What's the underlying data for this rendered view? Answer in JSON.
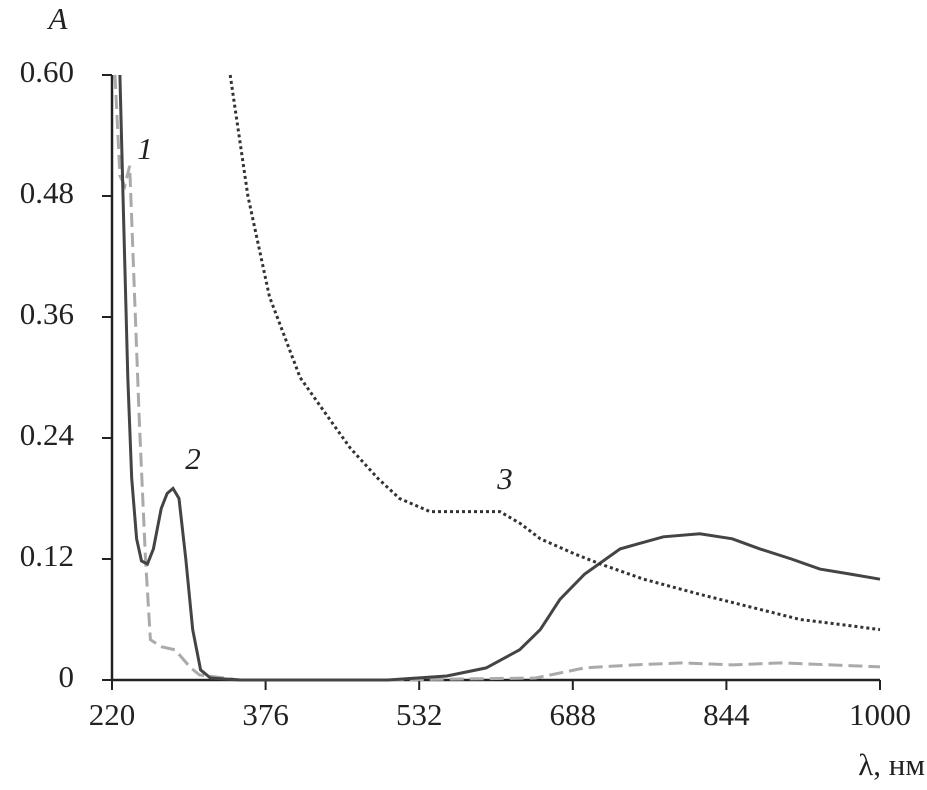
{
  "chart_data": {
    "type": "line",
    "y_label": "A",
    "x_label": "λ, нм",
    "xlim": [
      220,
      1000
    ],
    "xticks": [
      220,
      376,
      532,
      688,
      844,
      1000
    ],
    "ylim": [
      0,
      0.6
    ],
    "yticks": [
      0,
      0.12,
      0.24,
      0.36,
      0.48,
      {
        "value": 0.6,
        "label": "0.60"
      }
    ],
    "series": [
      {
        "name": "1",
        "color": "#aaaaaa",
        "style": "dashed",
        "x": [
          223,
          228,
          233,
          238,
          243,
          248,
          254,
          259,
          270,
          284,
          300,
          309,
          350,
          500,
          650,
          700,
          750,
          800,
          850,
          900,
          950,
          1000
        ],
        "values": [
          0.6,
          0.5,
          0.49,
          0.51,
          0.38,
          0.25,
          0.12,
          0.04,
          0.033,
          0.03,
          0.012,
          0.005,
          0.0,
          0.0,
          0.002,
          0.012,
          0.015,
          0.017,
          0.015,
          0.017,
          0.015,
          0.013
        ]
      },
      {
        "name": "2",
        "color": "#444444",
        "style": "solid",
        "x": [
          228,
          232,
          236,
          240,
          245,
          250,
          256,
          262,
          270,
          276,
          282,
          288,
          295,
          302,
          310,
          320,
          350,
          400,
          500,
          560,
          600,
          634,
          655,
          675,
          700,
          736,
          780,
          817,
          850,
          878,
          910,
          939,
          970,
          1000
        ],
        "values": [
          0.6,
          0.45,
          0.3,
          0.2,
          0.14,
          0.118,
          0.115,
          0.13,
          0.17,
          0.185,
          0.19,
          0.18,
          0.12,
          0.05,
          0.01,
          0.002,
          0.0,
          0.0,
          0.0,
          0.004,
          0.012,
          0.03,
          0.05,
          0.08,
          0.105,
          0.13,
          0.142,
          0.145,
          0.14,
          0.13,
          0.12,
          0.11,
          0.105,
          0.1
        ]
      },
      {
        "name": "3",
        "color": "#333333",
        "style": "dotted",
        "x": [
          340,
          358,
          380,
          411,
          440,
          462,
          490,
          512,
          543,
          580,
          614,
          635,
          655,
          690,
          716,
          760,
          817,
          870,
          919,
          960,
          1000
        ],
        "values": [
          0.6,
          0.48,
          0.38,
          0.3,
          0.26,
          0.23,
          0.2,
          0.18,
          0.167,
          0.167,
          0.167,
          0.155,
          0.14,
          0.125,
          0.115,
          0.1,
          0.085,
          0.072,
          0.06,
          0.055,
          0.05
        ]
      }
    ]
  }
}
